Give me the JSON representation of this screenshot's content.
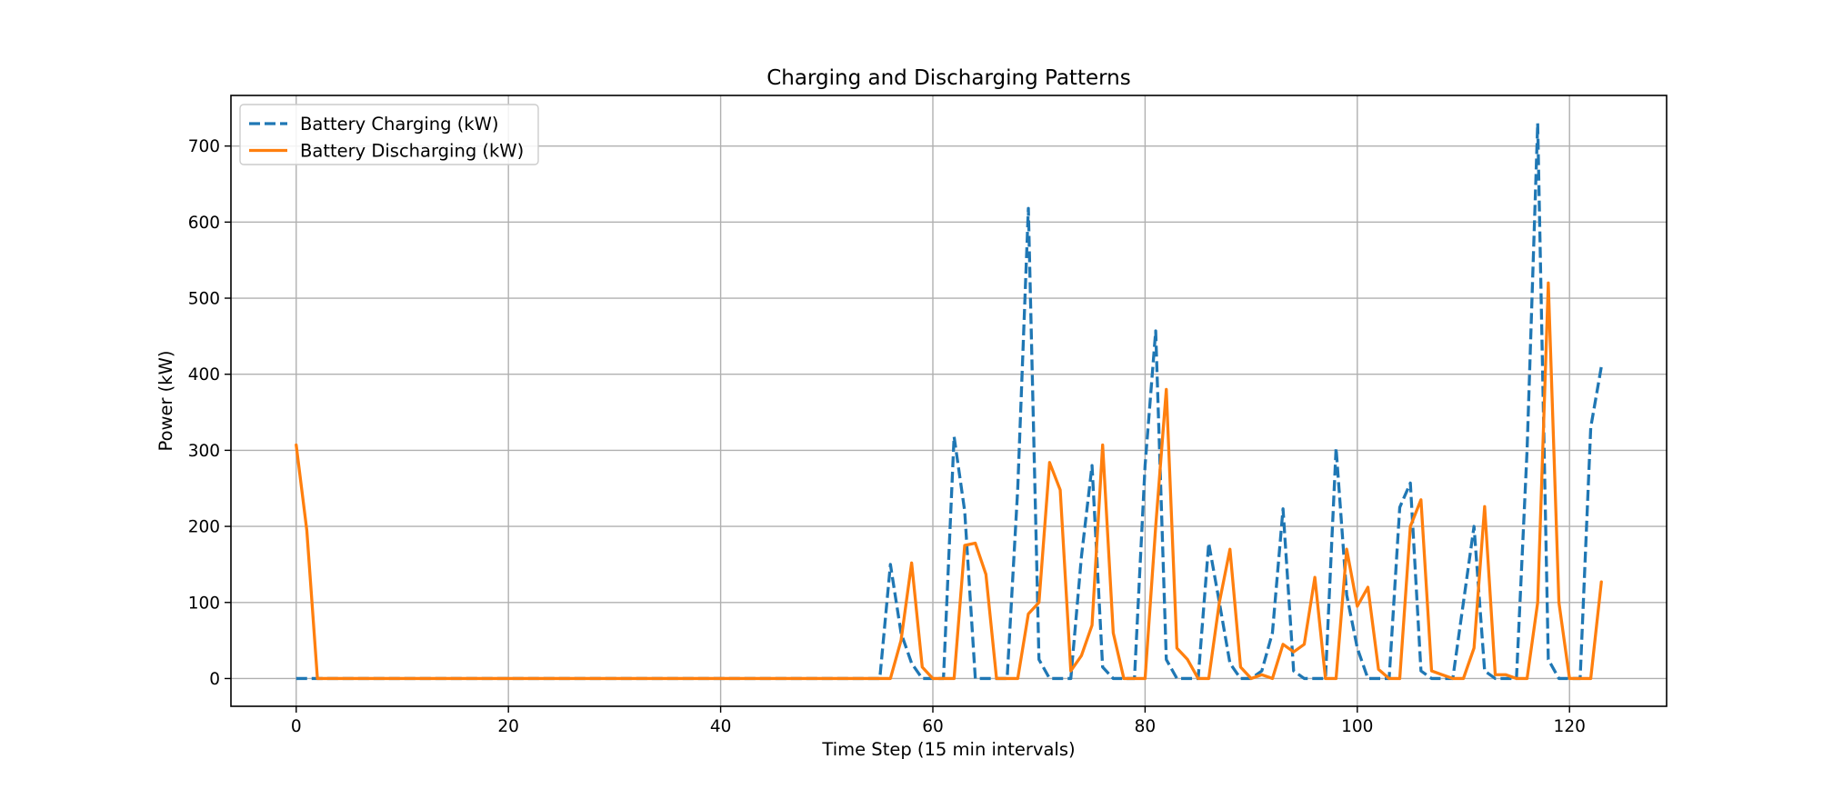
{
  "chart_data": {
    "type": "line",
    "title": "Charging and Discharging Patterns",
    "xlabel": "Time Step (15 min intervals)",
    "ylabel": "Power (kW)",
    "xlim": [
      -6.15,
      129.15
    ],
    "ylim": [
      -36.5,
      766.5
    ],
    "xticks": [
      0,
      20,
      40,
      60,
      80,
      100,
      120
    ],
    "yticks": [
      0,
      100,
      200,
      300,
      400,
      500,
      600,
      700
    ],
    "grid": true,
    "legend_position": "upper left",
    "x": [
      0,
      1,
      2,
      3,
      4,
      5,
      6,
      7,
      8,
      9,
      10,
      11,
      12,
      13,
      14,
      15,
      16,
      17,
      18,
      19,
      20,
      21,
      22,
      23,
      24,
      25,
      26,
      27,
      28,
      29,
      30,
      31,
      32,
      33,
      34,
      35,
      36,
      37,
      38,
      39,
      40,
      41,
      42,
      43,
      44,
      45,
      46,
      47,
      48,
      49,
      50,
      51,
      52,
      53,
      54,
      55,
      56,
      57,
      58,
      59,
      60,
      61,
      62,
      63,
      64,
      65,
      66,
      67,
      68,
      69,
      70,
      71,
      72,
      73,
      74,
      75,
      76,
      77,
      78,
      79,
      80,
      81,
      82,
      83,
      84,
      85,
      86,
      87,
      88,
      89,
      90,
      91,
      92,
      93,
      94,
      95,
      96,
      97,
      98,
      99,
      100,
      101,
      102,
      103,
      104,
      105,
      106,
      107,
      108,
      109,
      110,
      111,
      112,
      113,
      114,
      115,
      116,
      117,
      118,
      119,
      120,
      121,
      122,
      123
    ],
    "series": [
      {
        "name": "Battery Charging (kW)",
        "color": "#1f77b4",
        "style": "dashed",
        "values": [
          0,
          0,
          0,
          0,
          0,
          0,
          0,
          0,
          0,
          0,
          0,
          0,
          0,
          0,
          0,
          0,
          0,
          0,
          0,
          0,
          0,
          0,
          0,
          0,
          0,
          0,
          0,
          0,
          0,
          0,
          0,
          0,
          0,
          0,
          0,
          0,
          0,
          0,
          0,
          0,
          0,
          0,
          0,
          0,
          0,
          0,
          0,
          0,
          0,
          0,
          0,
          0,
          0,
          0,
          0,
          0,
          150,
          60,
          20,
          0,
          0,
          0,
          318,
          220,
          0,
          0,
          0,
          0,
          250,
          618,
          25,
          0,
          0,
          0,
          160,
          280,
          15,
          0,
          0,
          0,
          280,
          457,
          25,
          0,
          0,
          0,
          178,
          100,
          20,
          0,
          0,
          10,
          60,
          223,
          10,
          0,
          0,
          0,
          303,
          110,
          40,
          0,
          0,
          0,
          225,
          257,
          10,
          0,
          0,
          0,
          100,
          200,
          10,
          0,
          0,
          0,
          300,
          730,
          25,
          0,
          0,
          0,
          330,
          410
        ]
      },
      {
        "name": "Battery Discharging (kW)",
        "color": "#ff7f0e",
        "style": "solid",
        "values": [
          307,
          195,
          0,
          0,
          0,
          0,
          0,
          0,
          0,
          0,
          0,
          0,
          0,
          0,
          0,
          0,
          0,
          0,
          0,
          0,
          0,
          0,
          0,
          0,
          0,
          0,
          0,
          0,
          0,
          0,
          0,
          0,
          0,
          0,
          0,
          0,
          0,
          0,
          0,
          0,
          0,
          0,
          0,
          0,
          0,
          0,
          0,
          0,
          0,
          0,
          0,
          0,
          0,
          0,
          0,
          0,
          0,
          50,
          152,
          15,
          0,
          0,
          0,
          175,
          178,
          137,
          0,
          0,
          0,
          85,
          100,
          284,
          248,
          10,
          30,
          70,
          307,
          60,
          0,
          0,
          0,
          200,
          380,
          40,
          25,
          0,
          0,
          100,
          170,
          15,
          0,
          5,
          0,
          45,
          35,
          45,
          133,
          0,
          0,
          170,
          95,
          120,
          12,
          0,
          0,
          200,
          235,
          10,
          5,
          0,
          0,
          40,
          226,
          5,
          5,
          0,
          0,
          100,
          520,
          100,
          0,
          0,
          0,
          127
        ]
      }
    ]
  }
}
